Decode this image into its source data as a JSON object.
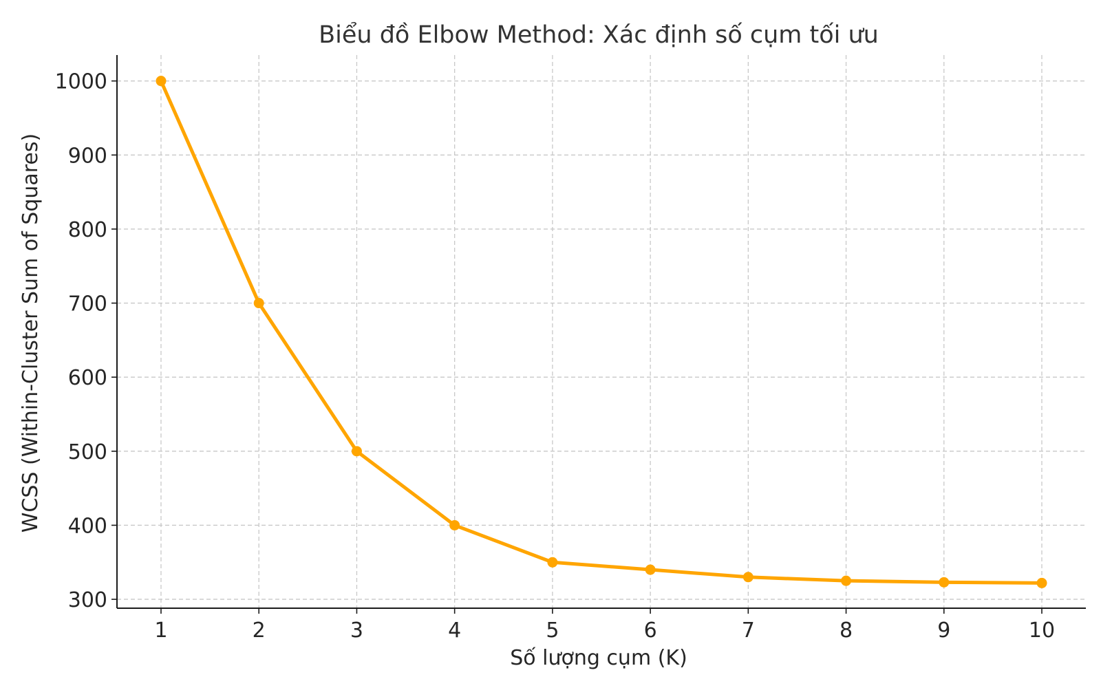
{
  "chart_data": {
    "type": "line",
    "title": "Biểu đồ Elbow Method: Xác định số cụm tối ưu",
    "xlabel": "Số lượng cụm (K)",
    "ylabel": "WCSS (Within-Cluster Sum of Squares)",
    "x": [
      1,
      2,
      3,
      4,
      5,
      6,
      7,
      8,
      9,
      10
    ],
    "series": [
      {
        "values": [
          1000,
          700,
          500,
          400,
          350,
          340,
          330,
          325,
          323,
          322
        ],
        "color": "#FFA500",
        "marker": "circle"
      }
    ],
    "xticks": [
      1,
      2,
      3,
      4,
      5,
      6,
      7,
      8,
      9,
      10
    ],
    "yticks": [
      300,
      400,
      500,
      600,
      700,
      800,
      900,
      1000
    ],
    "xlim": [
      0.55,
      10.45
    ],
    "ylim": [
      288,
      1035
    ],
    "grid": true
  }
}
